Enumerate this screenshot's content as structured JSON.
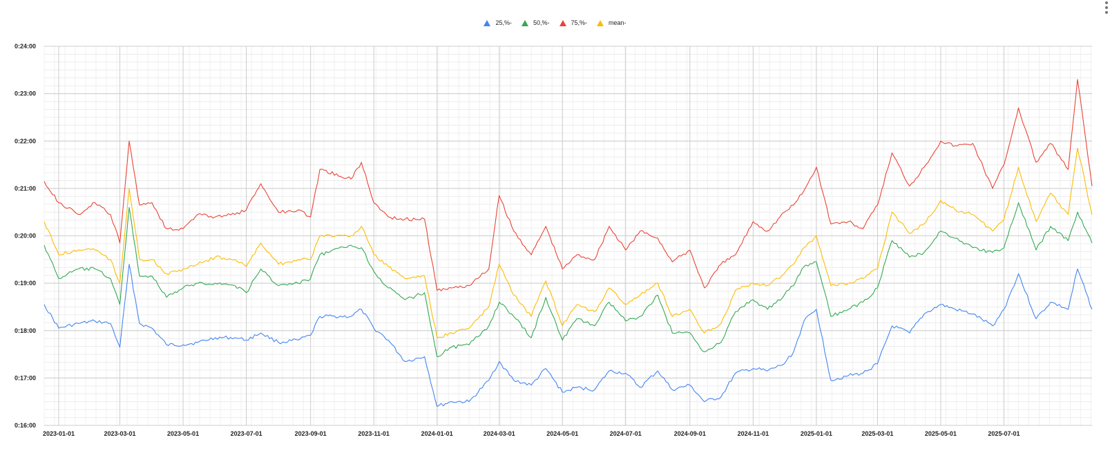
{
  "chart_data": {
    "type": "line",
    "title": "",
    "xlabel": "",
    "ylabel": "",
    "legend_position": "top-center",
    "grid": true,
    "x_range": [
      "2022-12-18",
      "2025-09-24"
    ],
    "y_range": [
      "16:00",
      "24:00"
    ],
    "y_ticks": [
      "0:16:00",
      "0:17:00",
      "0:18:00",
      "0:19:00",
      "0:20:00",
      "0:21:00",
      "0:22:00",
      "0:23:00",
      "0:24:00"
    ],
    "x_ticks": [
      "2023-01-01",
      "2023-03-01",
      "2023-05-01",
      "2023-07-01",
      "2023-09-01",
      "2023-11-01",
      "2024-01-01",
      "2024-03-01",
      "2024-05-01",
      "2024-07-01",
      "2024-09-01",
      "2024-11-01",
      "2025-01-01",
      "2025-03-01",
      "2025-05-01",
      "2025-07-01"
    ],
    "x": [
      "2022-12-18",
      "2023-01-01",
      "2023-01-20",
      "2023-02-05",
      "2023-02-20",
      "2023-03-01",
      "2023-03-10",
      "2023-03-20",
      "2023-04-01",
      "2023-04-15",
      "2023-05-01",
      "2023-05-15",
      "2023-06-01",
      "2023-06-20",
      "2023-07-01",
      "2023-07-15",
      "2023-08-01",
      "2023-08-20",
      "2023-09-01",
      "2023-09-10",
      "2023-10-10",
      "2023-10-20",
      "2023-11-01",
      "2023-11-15",
      "2023-12-01",
      "2023-12-20",
      "2024-01-01",
      "2024-01-15",
      "2024-02-01",
      "2024-02-20",
      "2024-03-01",
      "2024-03-15",
      "2024-04-01",
      "2024-04-15",
      "2024-05-01",
      "2024-05-15",
      "2024-06-01",
      "2024-06-15",
      "2024-07-01",
      "2024-07-15",
      "2024-08-01",
      "2024-08-15",
      "2024-09-01",
      "2024-09-15",
      "2024-10-01",
      "2024-10-15",
      "2024-11-01",
      "2024-11-15",
      "2024-12-01",
      "2024-12-10",
      "2024-12-20",
      "2025-01-01",
      "2025-01-15",
      "2025-02-01",
      "2025-02-15",
      "2025-03-01",
      "2025-03-15",
      "2025-04-01",
      "2025-04-15",
      "2025-05-01",
      "2025-05-15",
      "2025-06-01",
      "2025-06-20",
      "2025-07-01",
      "2025-07-15",
      "2025-08-01",
      "2025-08-15",
      "2025-09-01",
      "2025-09-10",
      "2025-09-24"
    ],
    "series": [
      {
        "name": "25,%-",
        "color": "#4285f4",
        "values": [
          18.55,
          18.05,
          18.15,
          18.2,
          18.15,
          17.65,
          19.4,
          18.15,
          18.05,
          17.7,
          17.7,
          17.75,
          17.85,
          17.85,
          17.8,
          17.95,
          17.75,
          17.8,
          17.9,
          18.3,
          18.3,
          18.45,
          18.05,
          17.8,
          17.35,
          17.45,
          16.4,
          16.5,
          16.5,
          16.95,
          17.35,
          16.95,
          16.85,
          17.2,
          16.7,
          16.8,
          16.75,
          17.15,
          17.1,
          16.8,
          17.15,
          16.75,
          16.85,
          16.5,
          16.6,
          17.1,
          17.2,
          17.15,
          17.3,
          17.55,
          18.2,
          18.45,
          16.95,
          17.05,
          17.1,
          17.3,
          18.1,
          17.95,
          18.35,
          18.55,
          18.45,
          18.35,
          18.1,
          18.45,
          19.2,
          18.25,
          18.6,
          18.45,
          19.3,
          18.45
        ]
      },
      {
        "name": "50,%-",
        "color": "#34a853",
        "values": [
          19.8,
          19.1,
          19.3,
          19.3,
          19.1,
          18.55,
          20.6,
          19.15,
          19.15,
          18.7,
          18.9,
          19.0,
          19.0,
          18.95,
          18.8,
          19.3,
          18.95,
          19.0,
          19.1,
          19.6,
          19.8,
          19.75,
          19.25,
          18.9,
          18.65,
          18.8,
          17.45,
          17.65,
          17.7,
          18.1,
          18.6,
          18.3,
          17.85,
          18.7,
          17.8,
          18.25,
          18.1,
          18.6,
          18.2,
          18.3,
          18.75,
          17.95,
          17.95,
          17.55,
          17.75,
          18.4,
          18.65,
          18.45,
          18.75,
          18.95,
          19.35,
          19.45,
          18.3,
          18.45,
          18.6,
          18.9,
          19.9,
          19.55,
          19.65,
          20.1,
          19.95,
          19.75,
          19.65,
          19.75,
          20.7,
          19.7,
          20.2,
          19.9,
          20.5,
          19.85
        ]
      },
      {
        "name": "75,%-",
        "color": "#ea4335",
        "values": [
          21.15,
          20.7,
          20.45,
          20.7,
          20.45,
          19.85,
          22.0,
          20.65,
          20.7,
          20.15,
          20.15,
          20.45,
          20.4,
          20.45,
          20.55,
          21.1,
          20.5,
          20.55,
          20.4,
          21.4,
          21.2,
          21.55,
          20.7,
          20.4,
          20.35,
          20.35,
          18.85,
          18.9,
          18.95,
          19.3,
          20.85,
          20.1,
          19.6,
          20.2,
          19.3,
          19.6,
          19.5,
          20.2,
          19.7,
          20.1,
          19.95,
          19.45,
          19.7,
          18.9,
          19.4,
          19.6,
          20.3,
          20.1,
          20.5,
          20.65,
          20.95,
          21.45,
          20.25,
          20.3,
          20.15,
          20.65,
          21.75,
          21.05,
          21.45,
          22.0,
          21.9,
          21.95,
          21.0,
          21.5,
          22.7,
          21.55,
          21.95,
          21.4,
          23.3,
          21.05
        ]
      },
      {
        "name": "mean-",
        "color": "#fbbc04",
        "values": [
          20.3,
          19.6,
          19.7,
          19.7,
          19.5,
          19.0,
          21.0,
          19.5,
          19.5,
          19.2,
          19.3,
          19.4,
          19.55,
          19.5,
          19.35,
          19.85,
          19.4,
          19.5,
          19.5,
          20.0,
          20.0,
          20.2,
          19.6,
          19.35,
          19.1,
          19.15,
          17.85,
          17.95,
          18.05,
          18.5,
          19.4,
          18.75,
          18.3,
          19.05,
          18.1,
          18.55,
          18.4,
          18.9,
          18.55,
          18.75,
          19.0,
          18.3,
          18.45,
          17.95,
          18.15,
          18.85,
          19.0,
          18.95,
          19.2,
          19.4,
          19.75,
          20.0,
          18.95,
          19.0,
          19.1,
          19.3,
          20.5,
          20.05,
          20.25,
          20.75,
          20.55,
          20.45,
          20.1,
          20.35,
          21.45,
          20.3,
          20.9,
          20.45,
          21.85,
          20.45
        ]
      }
    ]
  }
}
